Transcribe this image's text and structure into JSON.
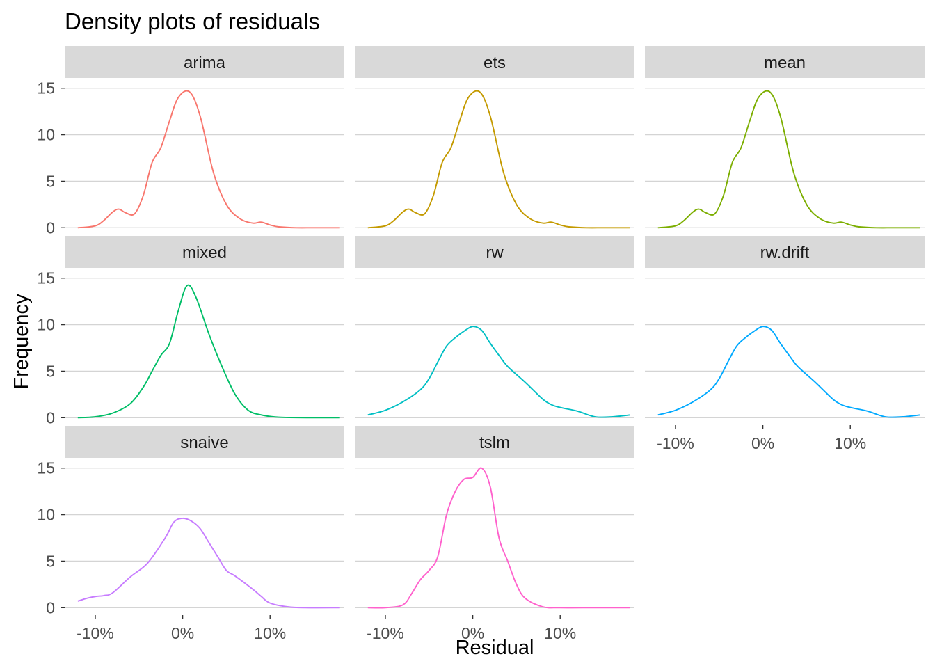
{
  "chart_data": {
    "type": "line",
    "title": "Density plots of residuals",
    "xlabel": "Residual",
    "ylabel": "Frequency",
    "xlim": [
      -0.135,
      0.185
    ],
    "ylim": [
      -0.8,
      16.1
    ],
    "x_ticks": [
      -0.1,
      0.0,
      0.1
    ],
    "x_tick_labels": [
      "-10%",
      "0%",
      "10%"
    ],
    "y_ticks": [
      0,
      5,
      10,
      15
    ],
    "y_tick_labels": [
      "0",
      "5",
      "10",
      "15"
    ],
    "grid": true,
    "legend": "none",
    "facets": [
      {
        "name": "arima",
        "color": "#F8766D",
        "x": [
          -0.12,
          -0.1,
          -0.09,
          -0.08,
          -0.073,
          -0.065,
          -0.055,
          -0.045,
          -0.035,
          -0.025,
          -0.015,
          -0.005,
          0.008,
          0.02,
          0.035,
          0.05,
          0.065,
          0.08,
          0.09,
          0.1,
          0.11,
          0.13,
          0.15,
          0.18
        ],
        "y": [
          0,
          0.2,
          0.8,
          1.7,
          2.0,
          1.6,
          1.5,
          3.5,
          7.0,
          8.6,
          11.5,
          14.0,
          14.6,
          12.0,
          6.0,
          2.5,
          1.0,
          0.5,
          0.6,
          0.3,
          0.1,
          0,
          0,
          0
        ]
      },
      {
        "name": "ets",
        "color": "#C49A00",
        "x": [
          -0.12,
          -0.1,
          -0.09,
          -0.08,
          -0.073,
          -0.065,
          -0.055,
          -0.045,
          -0.035,
          -0.025,
          -0.015,
          -0.005,
          0.008,
          0.02,
          0.035,
          0.05,
          0.065,
          0.08,
          0.09,
          0.1,
          0.11,
          0.13,
          0.15,
          0.18
        ],
        "y": [
          0,
          0.2,
          0.8,
          1.7,
          2.0,
          1.6,
          1.5,
          3.5,
          7.0,
          8.6,
          11.5,
          14.0,
          14.6,
          12.0,
          6.0,
          2.5,
          1.0,
          0.5,
          0.6,
          0.3,
          0.1,
          0,
          0,
          0
        ]
      },
      {
        "name": "mean",
        "color": "#7CAE00",
        "x": [
          -0.12,
          -0.1,
          -0.09,
          -0.08,
          -0.073,
          -0.065,
          -0.055,
          -0.045,
          -0.035,
          -0.025,
          -0.015,
          -0.005,
          0.008,
          0.02,
          0.035,
          0.05,
          0.065,
          0.08,
          0.09,
          0.1,
          0.11,
          0.13,
          0.15,
          0.18
        ],
        "y": [
          0,
          0.2,
          0.8,
          1.7,
          2.0,
          1.6,
          1.5,
          3.5,
          7.0,
          8.6,
          11.5,
          14.0,
          14.6,
          12.0,
          6.0,
          2.5,
          1.0,
          0.5,
          0.6,
          0.3,
          0.1,
          0,
          0,
          0
        ]
      },
      {
        "name": "mixed",
        "color": "#00BE67",
        "x": [
          -0.12,
          -0.1,
          -0.08,
          -0.06,
          -0.045,
          -0.035,
          -0.025,
          -0.015,
          -0.005,
          0.005,
          0.015,
          0.03,
          0.045,
          0.06,
          0.075,
          0.09,
          0.11,
          0.15,
          0.18
        ],
        "y": [
          0,
          0.1,
          0.5,
          1.5,
          3.3,
          5.0,
          6.7,
          8.0,
          11.5,
          14.2,
          13.0,
          9.0,
          5.5,
          2.5,
          0.8,
          0.3,
          0.05,
          0,
          0
        ]
      },
      {
        "name": "rw",
        "color": "#00BFC4",
        "x": [
          -0.12,
          -0.1,
          -0.08,
          -0.06,
          -0.05,
          -0.04,
          -0.03,
          -0.02,
          -0.01,
          0.0,
          0.01,
          0.02,
          0.03,
          0.04,
          0.06,
          0.08,
          0.09,
          0.1,
          0.12,
          0.14,
          0.16,
          0.18
        ],
        "y": [
          0.3,
          0.8,
          1.7,
          3.0,
          4.2,
          6.0,
          7.7,
          8.6,
          9.3,
          9.8,
          9.4,
          8.0,
          6.7,
          5.5,
          3.8,
          2.0,
          1.4,
          1.1,
          0.7,
          0.1,
          0.1,
          0.3
        ]
      },
      {
        "name": "rw.drift",
        "color": "#00A9FF",
        "x": [
          -0.12,
          -0.1,
          -0.08,
          -0.06,
          -0.05,
          -0.04,
          -0.03,
          -0.02,
          -0.01,
          0.0,
          0.01,
          0.02,
          0.03,
          0.04,
          0.06,
          0.08,
          0.09,
          0.1,
          0.12,
          0.14,
          0.16,
          0.18
        ],
        "y": [
          0.3,
          0.8,
          1.7,
          3.0,
          4.2,
          6.0,
          7.7,
          8.6,
          9.3,
          9.8,
          9.4,
          8.0,
          6.7,
          5.5,
          3.8,
          2.0,
          1.4,
          1.1,
          0.7,
          0.1,
          0.1,
          0.3
        ]
      },
      {
        "name": "snaive",
        "color": "#C77CFF",
        "x": [
          -0.12,
          -0.11,
          -0.1,
          -0.09,
          -0.08,
          -0.06,
          -0.04,
          -0.02,
          -0.01,
          0.0,
          0.01,
          0.02,
          0.03,
          0.04,
          0.05,
          0.06,
          0.08,
          0.09,
          0.1,
          0.12,
          0.14,
          0.18
        ],
        "y": [
          0.7,
          1.0,
          1.2,
          1.3,
          1.6,
          3.3,
          4.8,
          7.5,
          9.2,
          9.6,
          9.3,
          8.5,
          7.0,
          5.5,
          4.0,
          3.4,
          2.0,
          1.2,
          0.5,
          0.1,
          0,
          0
        ]
      },
      {
        "name": "tslm",
        "color": "#FF61CC",
        "x": [
          -0.12,
          -0.1,
          -0.08,
          -0.07,
          -0.06,
          -0.05,
          -0.04,
          -0.03,
          -0.02,
          -0.01,
          0.0,
          0.01,
          0.02,
          0.03,
          0.04,
          0.05,
          0.06,
          0.08,
          0.1,
          0.14,
          0.18
        ],
        "y": [
          0,
          0,
          0.3,
          1.5,
          3.0,
          4.0,
          5.5,
          10.0,
          12.5,
          13.8,
          14.0,
          15.0,
          13.0,
          7.5,
          5.0,
          2.5,
          1.0,
          0.1,
          0,
          0,
          0
        ]
      }
    ]
  }
}
